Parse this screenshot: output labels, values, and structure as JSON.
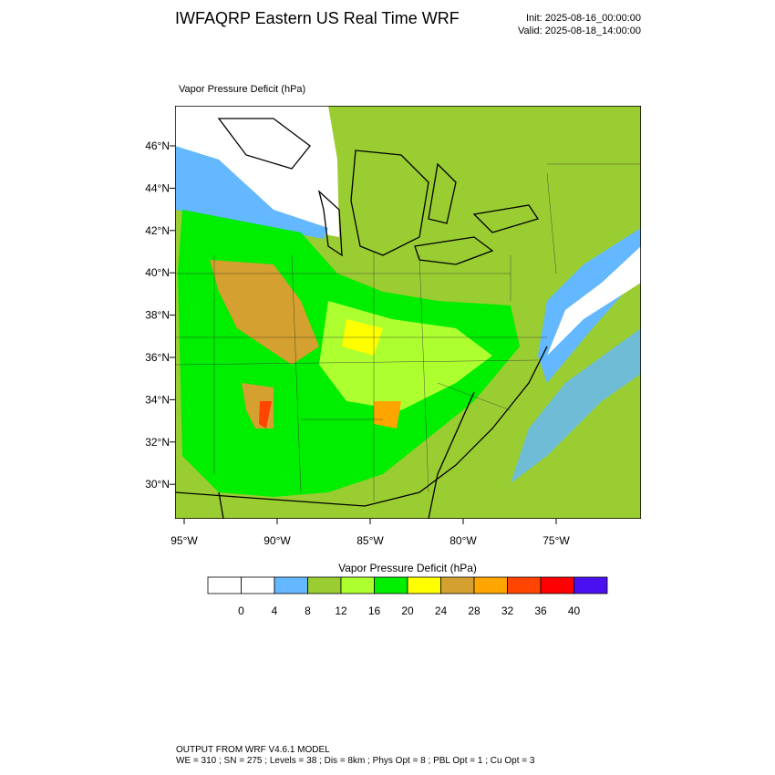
{
  "header": {
    "title": "IWFAQRP Eastern US Real Time WRF",
    "init": "Init: 2025-08-16_00:00:00",
    "valid": "Valid: 2025-08-18_14:00:00"
  },
  "map": {
    "field_label": "Vapor Pressure Deficit   (hPa)",
    "lat_labels": [
      "46°N",
      "44°N",
      "42°N",
      "40°N",
      "38°N",
      "36°N",
      "34°N",
      "32°N",
      "30°N"
    ],
    "lon_labels": [
      "95°W",
      "90°W",
      "85°W",
      "80°W",
      "75°W"
    ]
  },
  "colorbar": {
    "title": "Vapor Pressure Deficit  (hPa)",
    "colors": [
      "#ffffff",
      "#ffffff",
      "#63b8ff",
      "#9acd32",
      "#adff2f",
      "#00ee00",
      "#ffff00",
      "#d4a030",
      "#ffa500",
      "#ff4500",
      "#ff0000",
      "#4b10f0"
    ],
    "labels": [
      0,
      4,
      8,
      12,
      16,
      20,
      24,
      28,
      32,
      36,
      40
    ]
  },
  "footer": {
    "line1": "OUTPUT FROM WRF V4.6.1 MODEL",
    "line2": "WE = 310 ; SN = 275 ; Levels = 38 ; Dis = 8km ; Phys Opt = 8 ; PBL Opt = 1 ; Cu Opt = 3"
  }
}
